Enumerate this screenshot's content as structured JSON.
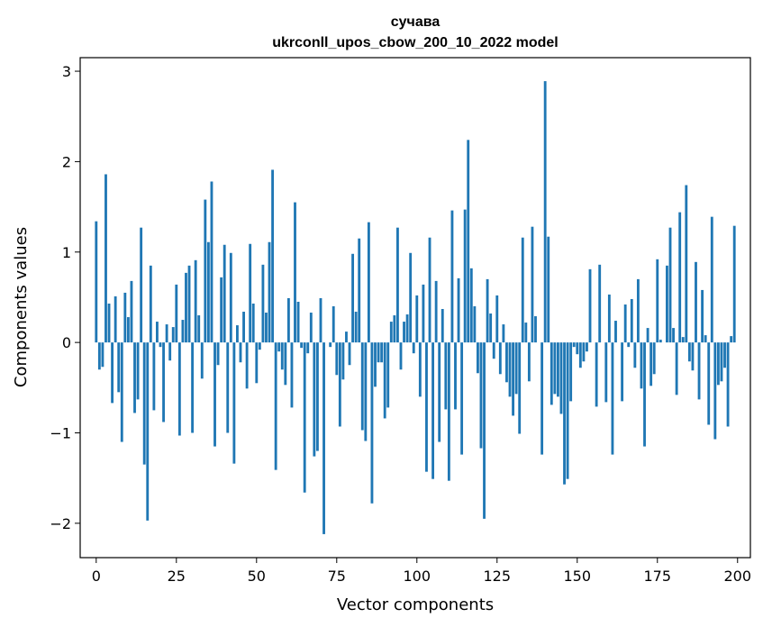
{
  "chart_data": {
    "type": "bar",
    "title": "сучава",
    "subtitle": "ukrconll_upos_cbow_200_10_2022 model",
    "xlabel": "Vector components",
    "ylabel": "Components values",
    "xlim": [
      -5,
      204
    ],
    "ylim": [
      -2.38,
      3.15
    ],
    "xticks": [
      0,
      25,
      50,
      75,
      100,
      125,
      150,
      175,
      200
    ],
    "xtick_labels": [
      "0",
      "25",
      "50",
      "75",
      "100",
      "125",
      "150",
      "175",
      "200"
    ],
    "yticks": [
      -2,
      -1,
      0,
      1,
      2,
      3
    ],
    "ytick_labels": [
      "−2",
      "−1",
      "0",
      "1",
      "2",
      "3"
    ],
    "grid": false,
    "bar_color": "#1f77b4",
    "x": [
      0,
      1,
      2,
      3,
      4,
      5,
      6,
      7,
      8,
      9,
      10,
      11,
      12,
      13,
      14,
      15,
      16,
      17,
      18,
      19,
      20,
      21,
      22,
      23,
      24,
      25,
      26,
      27,
      28,
      29,
      30,
      31,
      32,
      33,
      34,
      35,
      36,
      37,
      38,
      39,
      40,
      41,
      42,
      43,
      44,
      45,
      46,
      47,
      48,
      49,
      50,
      51,
      52,
      53,
      54,
      55,
      56,
      57,
      58,
      59,
      60,
      61,
      62,
      63,
      64,
      65,
      66,
      67,
      68,
      69,
      70,
      71,
      72,
      73,
      74,
      75,
      76,
      77,
      78,
      79,
      80,
      81,
      82,
      83,
      84,
      85,
      86,
      87,
      88,
      89,
      90,
      91,
      92,
      93,
      94,
      95,
      96,
      97,
      98,
      99,
      100,
      101,
      102,
      103,
      104,
      105,
      106,
      107,
      108,
      109,
      110,
      111,
      112,
      113,
      114,
      115,
      116,
      117,
      118,
      119,
      120,
      121,
      122,
      123,
      124,
      125,
      126,
      127,
      128,
      129,
      130,
      131,
      132,
      133,
      134,
      135,
      136,
      137,
      138,
      139,
      140,
      141,
      142,
      143,
      144,
      145,
      146,
      147,
      148,
      149,
      150,
      151,
      152,
      153,
      154,
      155,
      156,
      157,
      158,
      159,
      160,
      161,
      162,
      163,
      164,
      165,
      166,
      167,
      168,
      169,
      170,
      171,
      172,
      173,
      174,
      175,
      176,
      177,
      178,
      179,
      180,
      181,
      182,
      183,
      184,
      185,
      186,
      187,
      188,
      189,
      190,
      191,
      192,
      193,
      194,
      195,
      196,
      197,
      198,
      199
    ],
    "values": [
      1.34,
      -0.3,
      -0.27,
      1.86,
      0.43,
      -0.67,
      0.51,
      -0.55,
      -1.1,
      0.55,
      0.28,
      0.68,
      -0.78,
      -0.63,
      1.27,
      -1.35,
      -1.97,
      0.85,
      -0.75,
      0.23,
      -0.05,
      -0.88,
      0.2,
      -0.2,
      0.17,
      0.64,
      -1.03,
      0.25,
      0.77,
      0.85,
      -1.0,
      0.91,
      0.3,
      -0.4,
      1.58,
      1.11,
      1.78,
      -1.15,
      -0.25,
      0.72,
      1.08,
      -1.0,
      0.99,
      -1.34,
      0.19,
      -0.22,
      0.34,
      -0.51,
      1.09,
      0.43,
      -0.45,
      -0.08,
      0.86,
      0.33,
      1.11,
      1.91,
      -1.41,
      -0.1,
      -0.3,
      -0.47,
      0.49,
      -0.72,
      1.55,
      0.45,
      -0.06,
      -1.66,
      -0.12,
      0.33,
      -1.26,
      -1.2,
      0.49,
      -2.12,
      0.0,
      -0.05,
      0.4,
      -0.36,
      -0.93,
      -0.41,
      0.12,
      -0.25,
      0.98,
      0.34,
      1.15,
      -0.97,
      -1.09,
      1.33,
      -1.78,
      -0.49,
      -0.22,
      -0.22,
      -0.84,
      -0.72,
      0.23,
      0.3,
      1.27,
      -0.3,
      0.23,
      0.31,
      0.99,
      -0.12,
      0.52,
      -0.6,
      0.64,
      -1.43,
      1.16,
      -1.51,
      0.68,
      -1.1,
      0.37,
      -0.74,
      -1.53,
      1.46,
      -0.74,
      0.71,
      -1.24,
      1.47,
      2.24,
      0.82,
      0.4,
      -0.34,
      -1.17,
      -1.95,
      0.7,
      0.32,
      -0.18,
      0.52,
      -0.35,
      0.2,
      -0.44,
      -0.6,
      -0.81,
      -0.57,
      -1.01,
      1.16,
      0.22,
      -0.43,
      1.28,
      0.29,
      0.0,
      -1.24,
      2.89,
      1.17,
      -0.69,
      -0.57,
      -0.6,
      -0.79,
      -1.57,
      -1.51,
      -0.65,
      -0.05,
      -0.13,
      -0.28,
      -0.21,
      -0.1,
      0.81,
      0.0,
      -0.71,
      0.86,
      0.0,
      -0.66,
      0.53,
      -1.24,
      0.24,
      0.0,
      -0.65,
      0.42,
      -0.05,
      0.48,
      -0.28,
      0.7,
      -0.51,
      -1.15,
      0.16,
      -0.48,
      -0.35,
      0.92,
      0.03,
      0.0,
      0.85,
      1.27,
      0.16,
      -0.58,
      1.44,
      0.06,
      1.74,
      -0.21,
      -0.31,
      0.89,
      -0.63,
      0.58,
      0.08,
      -0.91,
      1.39,
      -1.07,
      -0.47,
      -0.43,
      -0.28,
      -0.93,
      0.07,
      1.29
    ]
  }
}
